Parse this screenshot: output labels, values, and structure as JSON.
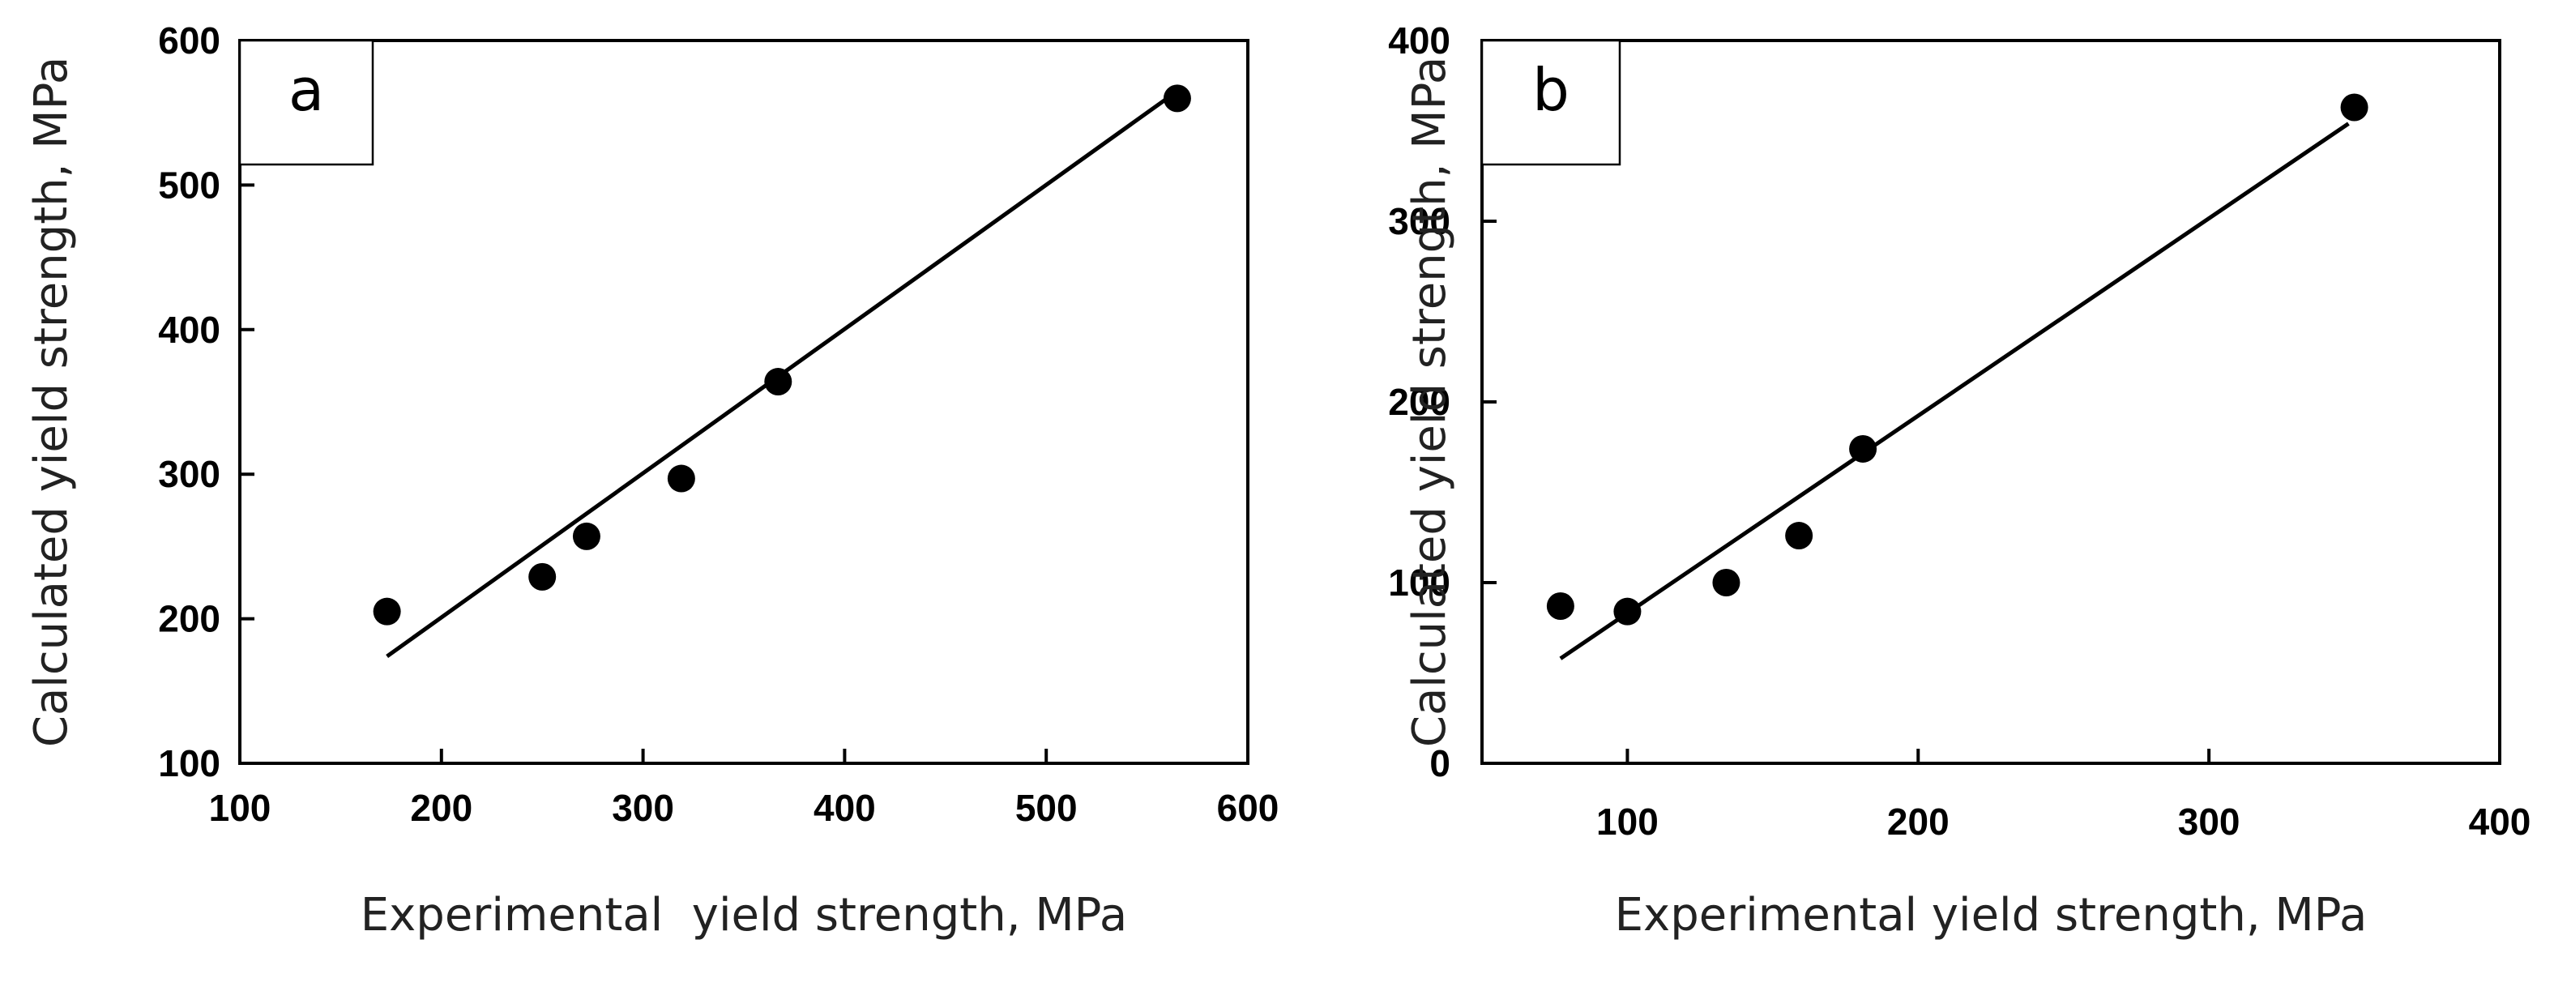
{
  "chart_data": [
    {
      "panel": "a",
      "type": "scatter",
      "xlabel": "Experimental  yield strength, MPa",
      "ylabel": "Calculated yield strength, MPa",
      "xlim": [
        100,
        600
      ],
      "ylim": [
        100,
        600
      ],
      "x_ticks": [
        100,
        200,
        300,
        400,
        500,
        600
      ],
      "x_tick_labels": [
        "100",
        "200",
        "300",
        "400",
        "500",
        "600"
      ],
      "y_ticks": [
        100,
        200,
        300,
        400,
        500,
        600
      ],
      "y_tick_labels": [
        "100",
        "200",
        "300",
        "400",
        "500",
        "600"
      ],
      "series": [
        {
          "name": "data",
          "points": [
            {
              "x": 173,
              "y": 205
            },
            {
              "x": 250,
              "y": 229
            },
            {
              "x": 272,
              "y": 257
            },
            {
              "x": 319,
              "y": 297
            },
            {
              "x": 367,
              "y": 364
            },
            {
              "x": 565,
              "y": 560
            }
          ]
        }
      ],
      "fit_line": {
        "x": [
          173,
          560
        ],
        "y": [
          174,
          560
        ]
      },
      "grid": false,
      "legend": "none"
    },
    {
      "panel": "b",
      "type": "scatter",
      "xlabel": "Experimental yield strength, MPa",
      "ylabel": "Calculated yield strength, MPa",
      "xlim": [
        50,
        400
      ],
      "ylim": [
        0,
        400
      ],
      "x_ticks": [
        100,
        200,
        300,
        400
      ],
      "x_tick_labels": [
        "100",
        "200",
        "300",
        "400"
      ],
      "y_ticks": [
        0,
        100,
        200,
        300,
        400
      ],
      "y_tick_labels": [
        "0",
        "100",
        "200",
        "300",
        "400"
      ],
      "series": [
        {
          "name": "data",
          "points": [
            {
              "x": 77,
              "y": 87
            },
            {
              "x": 100,
              "y": 84
            },
            {
              "x": 134,
              "y": 100
            },
            {
              "x": 159,
              "y": 126
            },
            {
              "x": 181,
              "y": 174
            },
            {
              "x": 350,
              "y": 363
            }
          ]
        }
      ],
      "fit_line": {
        "x": [
          77,
          348
        ],
        "y": [
          58,
          354
        ]
      },
      "grid": false,
      "legend": "none"
    }
  ]
}
